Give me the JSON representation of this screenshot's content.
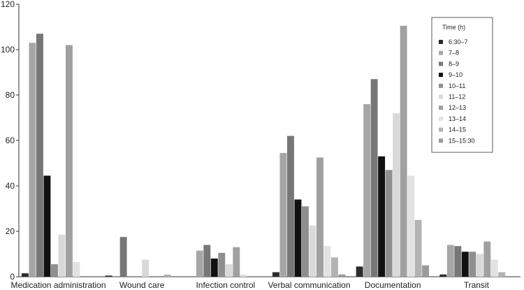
{
  "chart_data": {
    "type": "bar",
    "ylim": [
      0,
      120
    ],
    "yticks": [
      0,
      20,
      40,
      60,
      80,
      100,
      120
    ],
    "categories": [
      "Medication administration",
      "Wound care",
      "Infection control",
      "Verbal communication",
      "Documentation",
      "Transit"
    ],
    "legend": {
      "title": "Time (h)",
      "placement": "top-right"
    },
    "grid": false,
    "series": [
      {
        "name": "6:30–7",
        "color": "#2b2b2b",
        "values": [
          1.5,
          0.5,
          0,
          2,
          4.5,
          1
        ]
      },
      {
        "name": "7–8",
        "color": "#a6a6a6",
        "values": [
          103,
          0,
          11.5,
          54.5,
          76,
          14
        ]
      },
      {
        "name": "8–9",
        "color": "#777777",
        "values": [
          107,
          17.5,
          14,
          62,
          87,
          13.5
        ]
      },
      {
        "name": "9–10",
        "color": "#111111",
        "values": [
          44.5,
          0,
          8,
          34,
          53,
          11
        ]
      },
      {
        "name": "10–11",
        "color": "#8f8f8f",
        "values": [
          5.5,
          0,
          10.5,
          31,
          47,
          11
        ]
      },
      {
        "name": "11–12",
        "color": "#d9d9d9",
        "values": [
          18.5,
          7.5,
          5.5,
          22.5,
          72,
          10
        ]
      },
      {
        "name": "12–13",
        "color": "#a0a0a0",
        "values": [
          102,
          0,
          13,
          52.5,
          110.5,
          15.5
        ]
      },
      {
        "name": "13–14",
        "color": "#e2e2e2",
        "values": [
          6.5,
          0,
          1,
          13.5,
          44.5,
          7.5
        ]
      },
      {
        "name": "14–15",
        "color": "#b3b3b3",
        "values": [
          0,
          1,
          0,
          8.5,
          25,
          2
        ]
      },
      {
        "name": "15–15:30",
        "color": "#9a9a9a",
        "values": [
          0,
          0,
          0,
          1,
          5,
          0
        ]
      }
    ]
  }
}
